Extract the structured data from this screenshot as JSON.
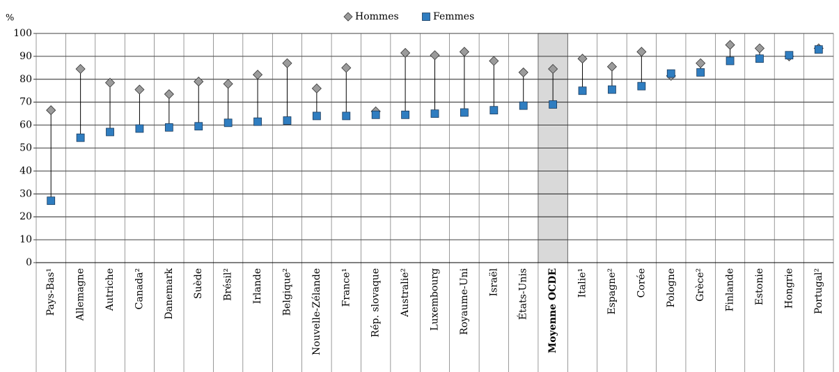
{
  "chart_data": {
    "type": "dot-range",
    "y_label": "%",
    "categories": [
      "Pays-Bas¹",
      "Allemagne",
      "Autriche",
      "Canada²",
      "Danemark",
      "Suède",
      "Brésil²",
      "Irlande",
      "Belgique²",
      "Nouvelle-Zélande",
      "France¹",
      "Rép. slovaque",
      "Australie²",
      "Luxembourg",
      "Royaume-Uni",
      "Israël",
      "États-Unis",
      "Moyenne OCDE",
      "Italie¹",
      "Espagne²",
      "Corée",
      "Pologne",
      "Grèce²",
      "Finlande",
      "Estonie",
      "Hongrie",
      "Portugal²"
    ],
    "series": [
      {
        "name": "Hommes",
        "color": "#9b9b9b",
        "marker": "diamond",
        "values": [
          66.5,
          84.5,
          78.5,
          75.5,
          73.5,
          79,
          78,
          82,
          87,
          76,
          85,
          66,
          91.5,
          90.5,
          92,
          88,
          83,
          84.5,
          89,
          85.5,
          92,
          81.5,
          87,
          95,
          93.5,
          90,
          93.5
        ]
      },
      {
        "name": "Femmes",
        "color": "#2f7dc0",
        "marker": "square",
        "values": [
          27,
          54.5,
          57,
          58.5,
          59,
          59.5,
          61,
          61.5,
          62,
          64,
          64,
          64.5,
          64.5,
          65,
          65.5,
          66.5,
          68.5,
          69,
          75,
          75.5,
          77,
          82.5,
          83,
          88,
          89,
          90.5,
          93
        ]
      }
    ],
    "highlight": 17,
    "ylim": [
      0,
      100
    ],
    "yticks": [
      0,
      10,
      20,
      30,
      40,
      50,
      60,
      70,
      80,
      90,
      100
    ],
    "grid": true
  }
}
